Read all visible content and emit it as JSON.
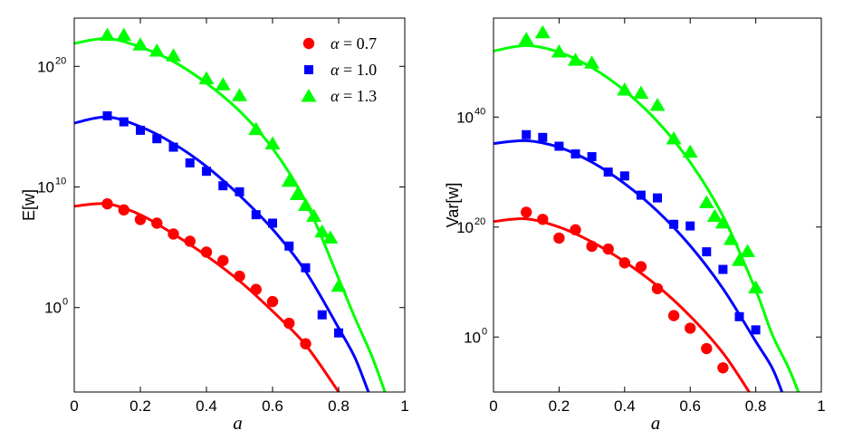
{
  "chart_data": [
    {
      "type": "scatter",
      "title": "",
      "xlabel": "a",
      "ylabel": "E[w]",
      "yscale": "log",
      "xlim": [
        0,
        1
      ],
      "ylim_exp": [
        -7,
        24
      ],
      "x_ticks": [
        "0",
        "0.2",
        "0.4",
        "0.6",
        "0.8",
        "1"
      ],
      "y_ticks": [
        {
          "base": "10",
          "exp": "0",
          "value": 0
        },
        {
          "base": "10",
          "exp": "10",
          "value": 10
        },
        {
          "base": "10",
          "exp": "20",
          "value": 20
        }
      ],
      "legend": {
        "position": "top-right",
        "entries": [
          {
            "prefix": "α",
            "mid": " = ",
            "value": "0.7",
            "marker": "circle",
            "color": "#ff0000"
          },
          {
            "prefix": "α",
            "mid": " = ",
            "value": "1.0",
            "marker": "square",
            "color": "#0000ff"
          },
          {
            "prefix": "α",
            "mid": " = ",
            "value": "1.3",
            "marker": "triangle",
            "color": "#00ff00"
          }
        ]
      },
      "series": [
        {
          "name": "α = 0.7",
          "color": "#ff0000",
          "marker": "circle",
          "points": [
            [
              0.1,
              8.6
            ],
            [
              0.15,
              8.1
            ],
            [
              0.2,
              7.3
            ],
            [
              0.25,
              7.0
            ],
            [
              0.3,
              6.1
            ],
            [
              0.35,
              5.5
            ],
            [
              0.4,
              4.6
            ],
            [
              0.45,
              3.9
            ],
            [
              0.5,
              2.6
            ],
            [
              0.55,
              1.5
            ],
            [
              0.6,
              0.5
            ],
            [
              0.65,
              -1.3
            ],
            [
              0.7,
              -3.0
            ]
          ],
          "fit": [
            [
              0,
              8.4
            ],
            [
              0.1,
              8.6
            ],
            [
              0.2,
              7.7
            ],
            [
              0.3,
              6.1
            ],
            [
              0.4,
              4.3
            ],
            [
              0.5,
              2.2
            ],
            [
              0.6,
              -0.3
            ],
            [
              0.7,
              -3.1
            ],
            [
              0.8,
              -7.0
            ]
          ]
        },
        {
          "name": "α = 1.0",
          "color": "#0000ff",
          "marker": "square",
          "points": [
            [
              0.1,
              15.9
            ],
            [
              0.15,
              15.4
            ],
            [
              0.2,
              14.7
            ],
            [
              0.25,
              14.0
            ],
            [
              0.3,
              13.3
            ],
            [
              0.35,
              12.0
            ],
            [
              0.4,
              11.3
            ],
            [
              0.45,
              10.1
            ],
            [
              0.5,
              9.6
            ],
            [
              0.55,
              7.7
            ],
            [
              0.6,
              7.0
            ],
            [
              0.65,
              5.1
            ],
            [
              0.7,
              3.3
            ],
            [
              0.75,
              -0.6
            ],
            [
              0.8,
              -2.1
            ]
          ],
          "fit": [
            [
              0,
              15.3
            ],
            [
              0.1,
              15.8
            ],
            [
              0.2,
              15.0
            ],
            [
              0.3,
              13.6
            ],
            [
              0.4,
              11.7
            ],
            [
              0.5,
              9.3
            ],
            [
              0.6,
              6.5
            ],
            [
              0.7,
              3.0
            ],
            [
              0.8,
              -1.7
            ],
            [
              0.85,
              -4.2
            ],
            [
              0.89,
              -7.0
            ]
          ]
        },
        {
          "name": "α = 1.3",
          "color": "#00ff00",
          "marker": "triangle",
          "points": [
            [
              0.1,
              22.6
            ],
            [
              0.15,
              22.6
            ],
            [
              0.2,
              21.8
            ],
            [
              0.25,
              21.3
            ],
            [
              0.3,
              20.9
            ],
            [
              0.4,
              19.0
            ],
            [
              0.45,
              18.5
            ],
            [
              0.5,
              17.6
            ],
            [
              0.55,
              14.8
            ],
            [
              0.6,
              13.6
            ],
            [
              0.65,
              10.5
            ],
            [
              0.675,
              9.4
            ],
            [
              0.7,
              8.5
            ],
            [
              0.725,
              7.6
            ],
            [
              0.75,
              6.3
            ],
            [
              0.775,
              5.8
            ],
            [
              0.8,
              1.8
            ]
          ],
          "fit": [
            [
              0,
              21.9
            ],
            [
              0.1,
              22.3
            ],
            [
              0.2,
              21.6
            ],
            [
              0.3,
              20.4
            ],
            [
              0.4,
              18.6
            ],
            [
              0.5,
              16.3
            ],
            [
              0.6,
              13.2
            ],
            [
              0.7,
              8.8
            ],
            [
              0.8,
              2.4
            ],
            [
              0.85,
              -0.9
            ],
            [
              0.9,
              -4.0
            ],
            [
              0.94,
              -7.0
            ]
          ]
        }
      ]
    },
    {
      "type": "scatter",
      "title": "",
      "xlabel": "a",
      "ylabel": "Var[w]",
      "yscale": "log",
      "xlim": [
        0,
        1
      ],
      "ylim_exp": [
        -10,
        58
      ],
      "x_ticks": [
        "0",
        "0.2",
        "0.4",
        "0.6",
        "0.8",
        "1"
      ],
      "y_ticks": [
        {
          "base": "10",
          "exp": "0",
          "value": 0
        },
        {
          "base": "10",
          "exp": "20",
          "value": 20
        },
        {
          "base": "10",
          "exp": "40",
          "value": 40
        }
      ],
      "series": [
        {
          "name": "α = 0.7",
          "color": "#ff0000",
          "marker": "circle",
          "points": [
            [
              0.1,
              22.7
            ],
            [
              0.15,
              21.4
            ],
            [
              0.2,
              18.0
            ],
            [
              0.25,
              19.5
            ],
            [
              0.3,
              16.5
            ],
            [
              0.35,
              16.0
            ],
            [
              0.4,
              13.5
            ],
            [
              0.45,
              12.8
            ],
            [
              0.5,
              8.8
            ],
            [
              0.55,
              3.9
            ],
            [
              0.6,
              1.6
            ],
            [
              0.65,
              -2.1
            ],
            [
              0.7,
              -5.6
            ]
          ],
          "fit": [
            [
              0,
              21.0
            ],
            [
              0.1,
              21.5
            ],
            [
              0.2,
              20.0
            ],
            [
              0.3,
              17.3
            ],
            [
              0.4,
              13.7
            ],
            [
              0.5,
              9.3
            ],
            [
              0.6,
              3.8
            ],
            [
              0.7,
              -2.9
            ],
            [
              0.78,
              -10.0
            ]
          ]
        },
        {
          "name": "α = 1.0",
          "color": "#0000ff",
          "marker": "square",
          "points": [
            [
              0.1,
              36.8
            ],
            [
              0.15,
              36.3
            ],
            [
              0.2,
              34.7
            ],
            [
              0.25,
              33.3
            ],
            [
              0.3,
              32.8
            ],
            [
              0.35,
              30.0
            ],
            [
              0.4,
              29.3
            ],
            [
              0.45,
              25.8
            ],
            [
              0.5,
              25.3
            ],
            [
              0.55,
              20.5
            ],
            [
              0.6,
              20.2
            ],
            [
              0.65,
              15.5
            ],
            [
              0.7,
              12.3
            ],
            [
              0.75,
              3.7
            ],
            [
              0.8,
              1.3
            ]
          ],
          "fit": [
            [
              0,
              35.2
            ],
            [
              0.1,
              35.7
            ],
            [
              0.2,
              34.5
            ],
            [
              0.3,
              31.8
            ],
            [
              0.4,
              27.9
            ],
            [
              0.5,
              22.9
            ],
            [
              0.6,
              16.6
            ],
            [
              0.7,
              8.8
            ],
            [
              0.8,
              -0.8
            ],
            [
              0.85,
              -5.6
            ],
            [
              0.88,
              -10.0
            ]
          ]
        },
        {
          "name": "α = 1.3",
          "color": "#00ff00",
          "marker": "triangle",
          "points": [
            [
              0.1,
              54.2
            ],
            [
              0.15,
              55.4
            ],
            [
              0.2,
              51.9
            ],
            [
              0.25,
              50.4
            ],
            [
              0.3,
              49.9
            ],
            [
              0.4,
              45.0
            ],
            [
              0.45,
              44.4
            ],
            [
              0.5,
              42.2
            ],
            [
              0.55,
              36.1
            ],
            [
              0.6,
              33.7
            ],
            [
              0.65,
              24.5
            ],
            [
              0.675,
              22.0
            ],
            [
              0.7,
              20.8
            ],
            [
              0.725,
              17.8
            ],
            [
              0.75,
              14.0
            ],
            [
              0.775,
              15.6
            ],
            [
              0.8,
              9.0
            ]
          ],
          "fit": [
            [
              0,
              52.0
            ],
            [
              0.1,
              53.0
            ],
            [
              0.2,
              51.8
            ],
            [
              0.3,
              49.0
            ],
            [
              0.4,
              44.8
            ],
            [
              0.5,
              39.2
            ],
            [
              0.6,
              31.8
            ],
            [
              0.7,
              22.0
            ],
            [
              0.8,
              8.5
            ],
            [
              0.85,
              0.5
            ],
            [
              0.9,
              -5.6
            ],
            [
              0.93,
              -10.0
            ]
          ]
        }
      ]
    }
  ]
}
